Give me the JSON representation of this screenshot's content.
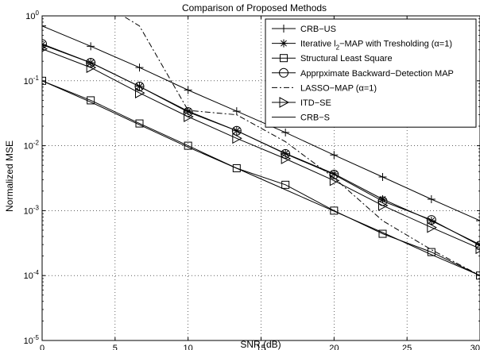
{
  "chart_data": {
    "type": "line",
    "title": "Comparison of Proposed Methods",
    "xlabel": "SNR (dB)",
    "ylabel": "Normalized MSE",
    "xlim": [
      0,
      30
    ],
    "ylim_exp": [
      -5,
      0
    ],
    "log_y": true,
    "grid": true,
    "legend_position": "top-right",
    "x_ticks": [
      "0",
      "5",
      "10",
      "15",
      "20",
      "25",
      "30"
    ],
    "y_ticks": [
      {
        "base": "10",
        "exp": "-5"
      },
      {
        "base": "10",
        "exp": "-4"
      },
      {
        "base": "10",
        "exp": "-3"
      },
      {
        "base": "10",
        "exp": "-2"
      },
      {
        "base": "10",
        "exp": "-1"
      },
      {
        "base": "10",
        "exp": "0"
      }
    ],
    "x": [
      0,
      3.33,
      6.67,
      10,
      13.33,
      16.67,
      20,
      23.33,
      26.67,
      30
    ],
    "series": [
      {
        "name": "CRB−US",
        "marker": "plus",
        "dash": "solid",
        "values": [
          0.7,
          0.34,
          0.16,
          0.072,
          0.034,
          0.016,
          0.0072,
          0.0033,
          0.0015,
          0.0007
        ]
      },
      {
        "name_parts": [
          "Iterative l",
          "2",
          "−MAP with Tresholding (α=1)"
        ],
        "marker": "star",
        "dash": "solid",
        "values": [
          0.36,
          0.19,
          0.082,
          0.034,
          0.017,
          0.0076,
          0.0037,
          0.0015,
          0.0007,
          0.0003
        ]
      },
      {
        "name": "Structural Least Square",
        "marker": "square",
        "dash": "solid",
        "values": [
          0.1,
          0.05,
          0.022,
          0.01,
          0.0045,
          0.0025,
          0.001,
          0.00044,
          0.00023,
          0.0001
        ]
      },
      {
        "name": "Apprpximate Backward−Detection MAP",
        "marker": "circle",
        "dash": "solid",
        "values": [
          0.37,
          0.19,
          0.082,
          0.033,
          0.017,
          0.0075,
          0.0036,
          0.0014,
          0.00072,
          0.00029
        ]
      },
      {
        "name": "LASSO−MAP (α=1)",
        "marker": "none",
        "dash": "dashdot",
        "values": [
          5.0,
          2.0,
          0.7,
          0.035,
          0.03,
          0.0115,
          0.0032,
          0.0007,
          0.00025,
          0.0001
        ]
      },
      {
        "name": "ITD−SE",
        "marker": "triangle-right",
        "dash": "solid",
        "values": [
          0.31,
          0.16,
          0.065,
          0.028,
          0.013,
          0.0063,
          0.0029,
          0.0012,
          0.00055,
          0.00026
        ]
      },
      {
        "name": "CRB−S",
        "marker": "none",
        "dash": "solid",
        "values": [
          0.1,
          0.047,
          0.021,
          0.0095,
          0.0045,
          0.0021,
          0.00098,
          0.00046,
          0.00021,
          0.0001
        ]
      }
    ]
  }
}
